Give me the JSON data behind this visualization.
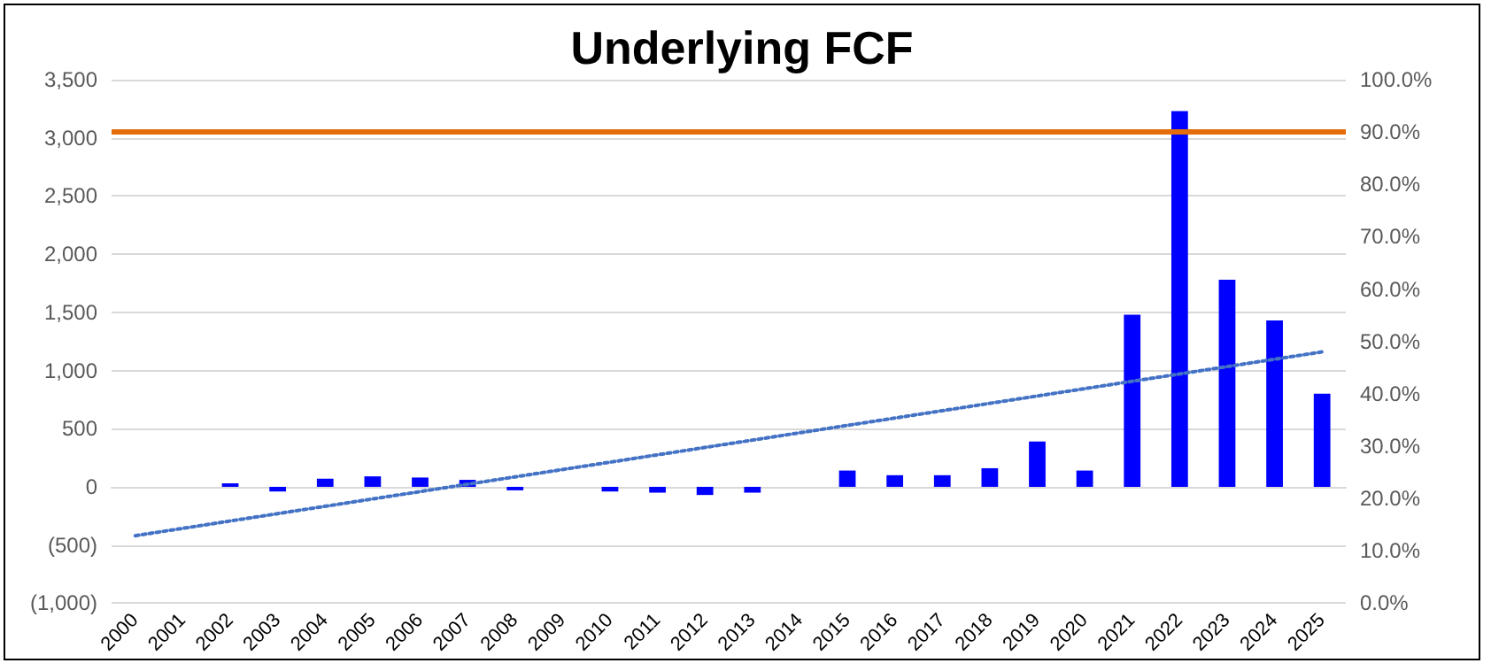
{
  "chart_data": {
    "type": "bar",
    "title": "Underlying FCF",
    "categories": [
      "2000",
      "2001",
      "2002",
      "2003",
      "2004",
      "2005",
      "2006",
      "2007",
      "2008",
      "2009",
      "2010",
      "2011",
      "2012",
      "2013",
      "2014",
      "2015",
      "2016",
      "2017",
      "2018",
      "2019",
      "2020",
      "2021",
      "2022",
      "2023",
      "2024",
      "2025"
    ],
    "series": [
      {
        "color": "#0000ff",
        "values": [
          null,
          null,
          30,
          -40,
          70,
          90,
          80,
          60,
          -30,
          null,
          -40,
          -50,
          -70,
          -50,
          null,
          140,
          100,
          100,
          160,
          390,
          140,
          1480,
          3230,
          1780,
          1430,
          800
        ]
      },
      {
        "type": "line",
        "color": "#4472c4",
        "line_style": "dotted",
        "marker": "none",
        "values": [
          -420,
          null,
          null,
          null,
          null,
          null,
          null,
          null,
          null,
          null,
          null,
          null,
          null,
          null,
          null,
          null,
          null,
          null,
          null,
          null,
          null,
          null,
          null,
          null,
          null,
          1160
        ]
      }
    ],
    "ylim": [
      -1000,
      3500
    ],
    "yticks": [
      {
        "value": -1000,
        "label": "(1,000)"
      },
      {
        "value": -500,
        "label": "(500)"
      },
      {
        "value": 0,
        "label": "0"
      },
      {
        "value": 500,
        "label": "500"
      },
      {
        "value": 1000,
        "label": "1,000"
      },
      {
        "value": 1500,
        "label": "1,500"
      },
      {
        "value": 2000,
        "label": "2,000"
      },
      {
        "value": 2500,
        "label": "2,500"
      },
      {
        "value": 3000,
        "label": "3,000"
      },
      {
        "value": 3500,
        "label": "3,500"
      }
    ],
    "y2lim": [
      0,
      100
    ],
    "y2ticks": [
      {
        "value": 0,
        "label": "0.0%"
      },
      {
        "value": 10,
        "label": "10.0%"
      },
      {
        "value": 20,
        "label": "20.0%"
      },
      {
        "value": 30,
        "label": "30.0%"
      },
      {
        "value": 40,
        "label": "40.0%"
      },
      {
        "value": 50,
        "label": "50.0%"
      },
      {
        "value": 60,
        "label": "60.0%"
      },
      {
        "value": 70,
        "label": "70.0%"
      },
      {
        "value": 80,
        "label": "80.0%"
      },
      {
        "value": 90,
        "label": "90.0%"
      },
      {
        "value": 100,
        "label": "100.0%"
      }
    ],
    "ref_lines": [
      {
        "axis": "y2",
        "value": 90,
        "color": "#e46c0a"
      }
    ],
    "grid": "y"
  }
}
